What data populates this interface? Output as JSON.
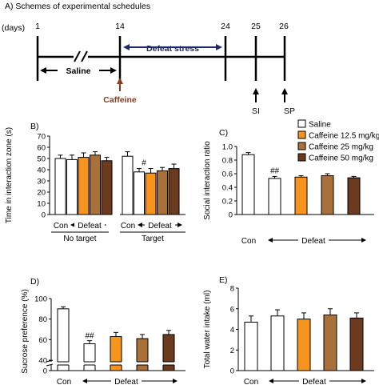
{
  "colors": {
    "saline": "#ffffff",
    "caffeine_12_5": "#f7941d",
    "caffeine_25": "#a9703a",
    "caffeine_50": "#6b3a1f",
    "timeline_line": "#000000",
    "defeat_arrow": "#1f2a6b",
    "caffeine_arrow": "#8b3a1a"
  },
  "schedule": {
    "title": "A) Schemes of experimental schedules",
    "days_label": "(days)",
    "days": [
      "1",
      "14",
      "24",
      "25",
      "26"
    ],
    "saline_label": "Saline",
    "defeat_stress_label": "Defeat stress",
    "caffeine_label": "Caffeine",
    "si_label": "SI",
    "sp_label": "SP"
  },
  "legend": {
    "items": [
      "Saline",
      "Caffeine 12.5 mg/kg",
      "Caffeine 25 mg/kg",
      "Caffeine 50 mg/kg"
    ]
  },
  "chart_data": [
    {
      "panel": "B)",
      "type": "bar",
      "ylabel": "Time in interaction zone (s)",
      "ylim": [
        0,
        70
      ],
      "yticks": [
        "0",
        "10",
        "20",
        "30",
        "40",
        "50",
        "60",
        "70"
      ],
      "groups": [
        {
          "name": "No target",
          "values": [
            50,
            49,
            51,
            53,
            48
          ],
          "errors": [
            3,
            4,
            4,
            3,
            3
          ]
        },
        {
          "name": "Target",
          "values": [
            52,
            38,
            37,
            39,
            41
          ],
          "errors": [
            4,
            3,
            4,
            3,
            4
          ]
        }
      ],
      "bar_colors": [
        "saline",
        "saline",
        "caffeine_12_5",
        "caffeine_25",
        "caffeine_50"
      ],
      "markers": [
        {
          "group": 1,
          "bar": 1,
          "text": "#"
        }
      ],
      "con_label": "Con",
      "defeat_label": "Defeat"
    },
    {
      "panel": "C)",
      "type": "bar",
      "ylabel": "Social interaction ratio",
      "ylim": [
        0,
        1.0
      ],
      "yticks": [
        "0",
        "0.2",
        "0.4",
        "0.6",
        "0.8",
        "1.0"
      ],
      "values": [
        0.88,
        0.53,
        0.55,
        0.57,
        0.54
      ],
      "errors": [
        0.03,
        0.03,
        0.02,
        0.03,
        0.02
      ],
      "bar_colors": [
        "saline",
        "saline",
        "caffeine_12_5",
        "caffeine_25",
        "caffeine_50"
      ],
      "markers": [
        {
          "bar": 1,
          "text": "##"
        }
      ],
      "con_label": "Con",
      "defeat_label": "Defeat"
    },
    {
      "panel": "D)",
      "type": "bar",
      "ylabel": "Sucrose preference (%)",
      "ylim": [
        0,
        100
      ],
      "yticks": [
        "0",
        "40",
        "60",
        "80",
        "100"
      ],
      "axis_break": true,
      "values": [
        90,
        56,
        63,
        61,
        65
      ],
      "errors": [
        2,
        3,
        4,
        4,
        4
      ],
      "bar_colors": [
        "saline",
        "saline",
        "caffeine_12_5",
        "caffeine_25",
        "caffeine_50"
      ],
      "markers": [
        {
          "bar": 1,
          "text": "##"
        }
      ],
      "con_label": "Con",
      "defeat_label": "Defeat"
    },
    {
      "panel": "E)",
      "type": "bar",
      "ylabel": "Total water intake (ml)",
      "ylim": [
        0,
        8
      ],
      "yticks": [
        "0",
        "2",
        "4",
        "6",
        "8"
      ],
      "values": [
        4.7,
        5.3,
        5.0,
        5.4,
        5.1
      ],
      "errors": [
        0.6,
        0.6,
        0.6,
        0.6,
        0.5
      ],
      "bar_colors": [
        "saline",
        "saline",
        "caffeine_12_5",
        "caffeine_25",
        "caffeine_50"
      ],
      "markers": [],
      "con_label": "Con",
      "defeat_label": "Defeat"
    }
  ]
}
